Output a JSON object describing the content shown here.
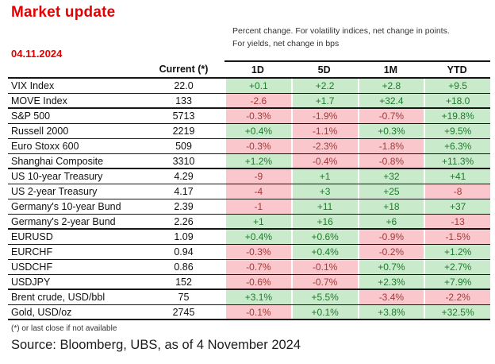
{
  "title": "Market update",
  "date": "04.11.2024",
  "note": {
    "line1": "Percent change. For volatility indices, net change in points.",
    "line2": "For yields, net change in bps"
  },
  "table": {
    "current_header": "Current (*)",
    "period_headers": [
      "1D",
      "5D",
      "1M",
      "YTD"
    ],
    "rows": [
      {
        "name": "VIX Index",
        "current": "22.0",
        "changes": [
          "+0.1",
          "+2.2",
          "+2.8",
          "+9.5"
        ],
        "group_end": false
      },
      {
        "name": "MOVE Index",
        "current": "133",
        "changes": [
          "-2.6",
          "+1.7",
          "+32.4",
          "+18.0"
        ],
        "group_end": true
      },
      {
        "name": "S&P 500",
        "current": "5713",
        "changes": [
          "-0.3%",
          "-1.9%",
          "-0.7%",
          "+19.8%"
        ],
        "group_end": false
      },
      {
        "name": "Russell 2000",
        "current": "2219",
        "changes": [
          "+0.4%",
          "-1.1%",
          "+0.3%",
          "+9.5%"
        ],
        "group_end": false
      },
      {
        "name": "Euro Stoxx 600",
        "current": "509",
        "changes": [
          "-0.3%",
          "-2.3%",
          "-1.8%",
          "+6.3%"
        ],
        "group_end": false
      },
      {
        "name": "Shanghai Composite",
        "current": "3310",
        "changes": [
          "+1.2%",
          "-0.4%",
          "-0.8%",
          "+11.3%"
        ],
        "group_end": true
      },
      {
        "name": "US 10-year Treasury",
        "current": "4.29",
        "changes": [
          "-9",
          "+1",
          "+32",
          "+41"
        ],
        "group_end": false
      },
      {
        "name": "US 2-year Treasury",
        "current": "4.17",
        "changes": [
          "-4",
          "+3",
          "+25",
          "-8"
        ],
        "group_end": false
      },
      {
        "name": "Germany's 10-year Bund",
        "current": "2.39",
        "changes": [
          "-1",
          "+11",
          "+18",
          "+37"
        ],
        "group_end": false
      },
      {
        "name": "Germany's 2-year Bund",
        "current": "2.26",
        "changes": [
          "+1",
          "+16",
          "+6",
          "-13"
        ],
        "group_end": true
      },
      {
        "name": "EURUSD",
        "current": "1.09",
        "changes": [
          "+0.4%",
          "+0.6%",
          "-0.9%",
          "-1.5%"
        ],
        "group_end": false
      },
      {
        "name": "EURCHF",
        "current": "0.94",
        "changes": [
          "-0.3%",
          "+0.4%",
          "-0.2%",
          "+1.2%"
        ],
        "group_end": false
      },
      {
        "name": "USDCHF",
        "current": "0.86",
        "changes": [
          "-0.7%",
          "-0.1%",
          "+0.7%",
          "+2.7%"
        ],
        "group_end": false
      },
      {
        "name": "USDJPY",
        "current": "152",
        "changes": [
          "-0.6%",
          "-0.7%",
          "+2.3%",
          "+7.9%"
        ],
        "group_end": true
      },
      {
        "name": "Brent crude, USD/bbl",
        "current": "75",
        "changes": [
          "+3.1%",
          "+5.5%",
          "-3.4%",
          "-2.2%"
        ],
        "group_end": false
      },
      {
        "name": "Gold,  USD/oz",
        "current": "2745",
        "changes": [
          "-0.1%",
          "+0.1%",
          "+3.8%",
          "+32.5%"
        ],
        "group_end": true
      }
    ]
  },
  "footnote": "(*) or last close if not available",
  "source": "Source: Bloomberg, UBS, as of 4 November 2024",
  "colors": {
    "accent": "#e60000",
    "positive_bg": "#c9ebcc",
    "positive_text": "#1f7a2e",
    "negative_bg": "#f9c7cc",
    "negative_text": "#a63939",
    "border": "#161616"
  }
}
